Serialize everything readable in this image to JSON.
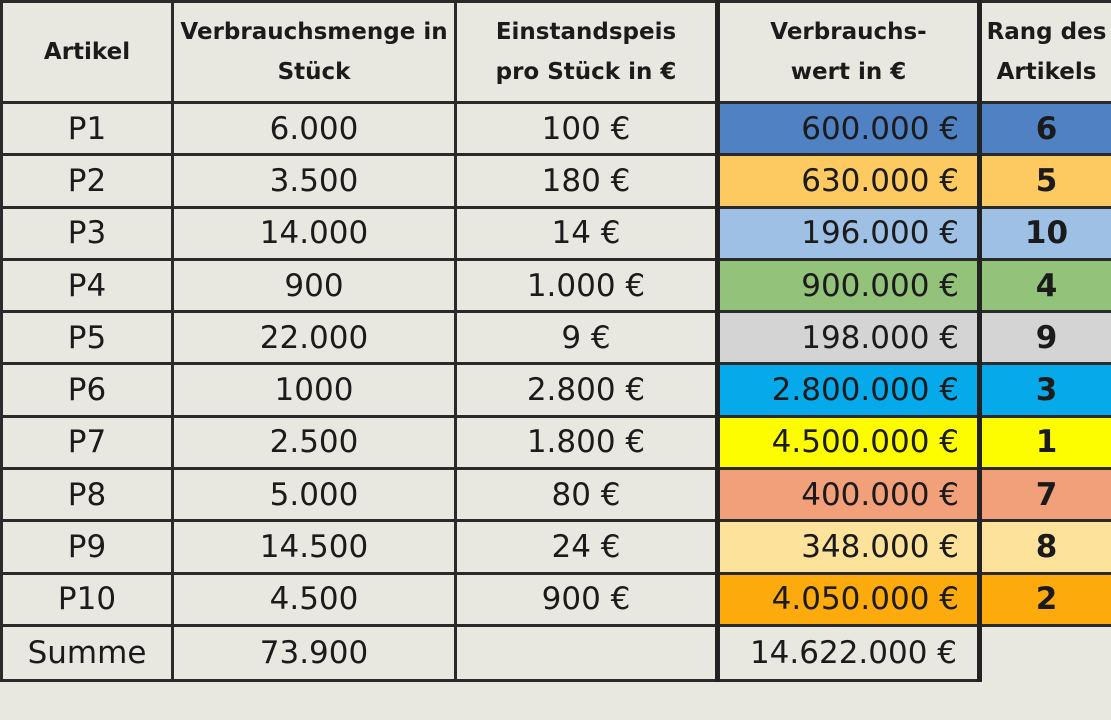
{
  "headers": {
    "artikel": [
      "Artikel"
    ],
    "menge": [
      "Verbrauchsmenge in",
      "Stück"
    ],
    "preis": [
      "Einstandspeis",
      "pro Stück in €"
    ],
    "wert": [
      "Verbrauchs-",
      "wert in €"
    ],
    "rang": [
      "Rang des",
      "Artikels"
    ]
  },
  "rows": [
    {
      "artikel": "P1",
      "menge": "6.000",
      "preis": "100 €",
      "wert": "600.000 €",
      "rang": "6",
      "color": "#4f81c3"
    },
    {
      "artikel": "P2",
      "menge": "3.500",
      "preis": "180 €",
      "wert": "630.000 €",
      "rang": "5",
      "color": "#fdc961"
    },
    {
      "artikel": "P3",
      "menge": "14.000",
      "preis": "14 €",
      "wert": "196.000 €",
      "rang": "10",
      "color": "#9dc0e4"
    },
    {
      "artikel": "P4",
      "menge": "900",
      "preis": "1.000 €",
      "wert": "900.000 €",
      "rang": "4",
      "color": "#93c27a"
    },
    {
      "artikel": "P5",
      "menge": "22.000",
      "preis": "9 €",
      "wert": "198.000 €",
      "rang": "9",
      "color": "#d4d4d4"
    },
    {
      "artikel": "P6",
      "menge": "1000",
      "preis": "2.800 €",
      "wert": "2.800.000 €",
      "rang": "3",
      "color": "#06a9e9"
    },
    {
      "artikel": "P7",
      "menge": "2.500",
      "preis": "1.800 €",
      "wert": "4.500.000 €",
      "rang": "1",
      "color": "#fdfd00"
    },
    {
      "artikel": "P8",
      "menge": "5.000",
      "preis": "80 €",
      "wert": "400.000 €",
      "rang": "7",
      "color": "#f2a07a"
    },
    {
      "artikel": "P9",
      "menge": "14.500",
      "preis": "24 €",
      "wert": "348.000 €",
      "rang": "8",
      "color": "#fde29c"
    },
    {
      "artikel": "P10",
      "menge": "4.500",
      "preis": "900 €",
      "wert": "4.050.000 €",
      "rang": "2",
      "color": "#fdaa0d"
    }
  ],
  "summe": {
    "label": "Summe",
    "menge": "73.900",
    "wert": "14.622.000 €"
  }
}
